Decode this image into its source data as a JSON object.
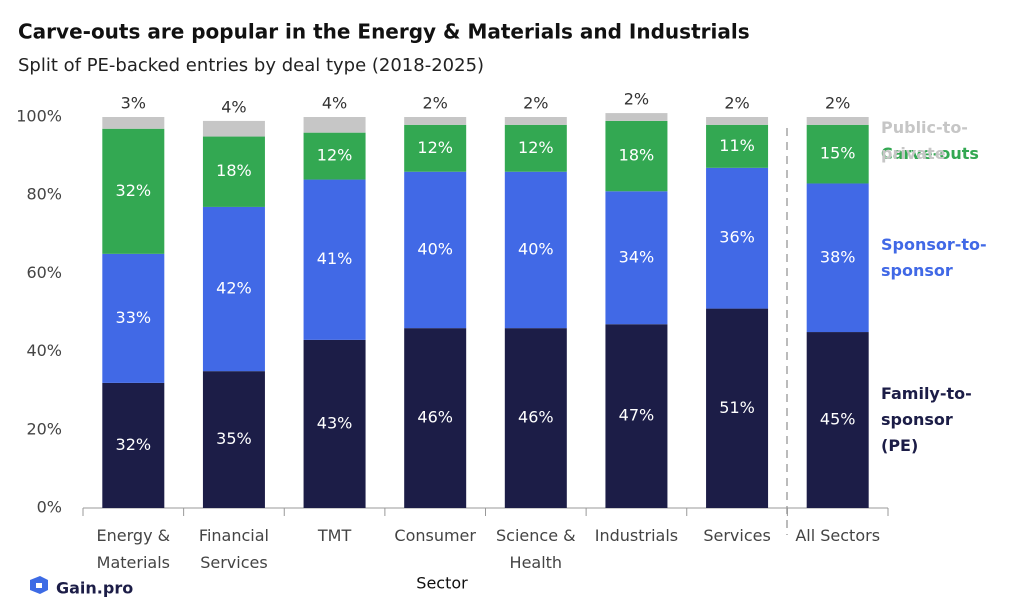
{
  "chart_data": {
    "type": "stacked_bar",
    "title": "Carve-outs are popular in the Energy & Materials and Industrials",
    "subtitle": "Split of PE-backed entries by deal type (2018-2025)",
    "x_label": "Sector",
    "brand": "Gain.pro",
    "categories": [
      "Energy & Materials",
      "Financial Services",
      "TMT",
      "Consumer",
      "Science & Health",
      "Industrials",
      "Services",
      "All Sectors"
    ],
    "series": [
      {
        "name": "Family-to-sponsor (PE)",
        "color": "#1c1d47",
        "values": [
          32,
          35,
          43,
          46,
          46,
          47,
          51,
          45
        ],
        "value_labels": [
          "32%",
          "35%",
          "43%",
          "46%",
          "46%",
          "47%",
          "51%",
          "45%"
        ]
      },
      {
        "name": "Sponsor-to-sponsor",
        "color": "#4169e6",
        "values": [
          33,
          42,
          41,
          40,
          40,
          34,
          36,
          38
        ],
        "value_labels": [
          "33%",
          "42%",
          "41%",
          "40%",
          "40%",
          "34%",
          "36%",
          "38%"
        ]
      },
      {
        "name": "Carve-outs",
        "color": "#33a852",
        "values": [
          32,
          18,
          12,
          12,
          12,
          18,
          11,
          15
        ],
        "value_labels": [
          "32%",
          "18%",
          "12%",
          "12%",
          "12%",
          "18%",
          "11%",
          "15%"
        ]
      },
      {
        "name": "Public-to-private",
        "color": "#c6c6c6",
        "values": [
          3,
          4,
          4,
          2,
          2,
          2,
          2,
          2
        ],
        "value_labels": [
          "3%",
          "4%",
          "4%",
          "2%",
          "2%",
          "2%",
          "2%",
          "2%"
        ]
      }
    ],
    "ylim": [
      0,
      100
    ],
    "yticks": [
      {
        "value": 0,
        "label": "0%"
      },
      {
        "value": 20,
        "label": "20%"
      },
      {
        "value": 40,
        "label": "40%"
      },
      {
        "value": 60,
        "label": "60%"
      },
      {
        "value": 80,
        "label": "80%"
      },
      {
        "value": 100,
        "label": "100%"
      }
    ],
    "legend": "right"
  }
}
